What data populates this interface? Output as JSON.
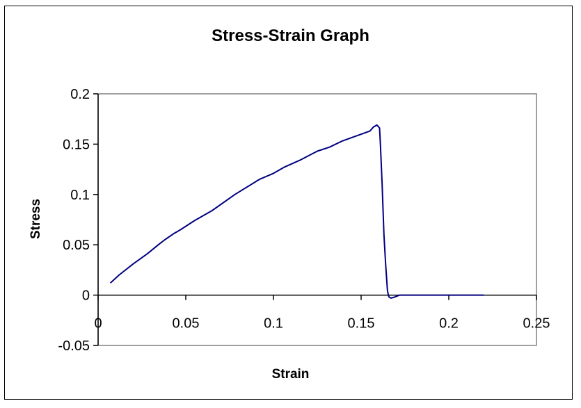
{
  "chart_data": {
    "type": "line",
    "title": "Stress-Strain Graph",
    "xlabel": "Strain",
    "ylabel": "Stress",
    "xlim": [
      0,
      0.25
    ],
    "ylim": [
      -0.05,
      0.2
    ],
    "x_ticks": [
      "0",
      "0.05",
      "0.1",
      "0.15",
      "0.2",
      "0.25"
    ],
    "y_ticks": [
      "-0.05",
      "0",
      "0.05",
      "0.1",
      "0.15",
      "0.2"
    ],
    "grid": false,
    "legend": "none",
    "line_color": "#000080",
    "axis_color": "#808080",
    "series": [
      {
        "x": [
          0.007,
          0.012,
          0.02,
          0.028,
          0.035,
          0.038,
          0.043,
          0.047,
          0.055,
          0.065,
          0.078,
          0.092,
          0.1,
          0.106,
          0.115,
          0.125,
          0.132,
          0.139,
          0.147,
          0.155,
          0.157,
          0.159,
          0.1605,
          0.161,
          0.162,
          0.163,
          0.164,
          0.165,
          0.1655,
          0.166,
          0.167,
          0.169,
          0.172,
          0.18,
          0.2,
          0.22
        ],
        "y": [
          0.012,
          0.02,
          0.031,
          0.041,
          0.051,
          0.055,
          0.061,
          0.065,
          0.074,
          0.084,
          0.1,
          0.115,
          0.121,
          0.127,
          0.134,
          0.143,
          0.147,
          0.153,
          0.158,
          0.163,
          0.167,
          0.169,
          0.166,
          0.15,
          0.11,
          0.06,
          0.03,
          0.005,
          0.0,
          -0.002,
          -0.003,
          -0.002,
          0.0,
          0.0,
          0.0,
          0.0
        ]
      }
    ]
  }
}
